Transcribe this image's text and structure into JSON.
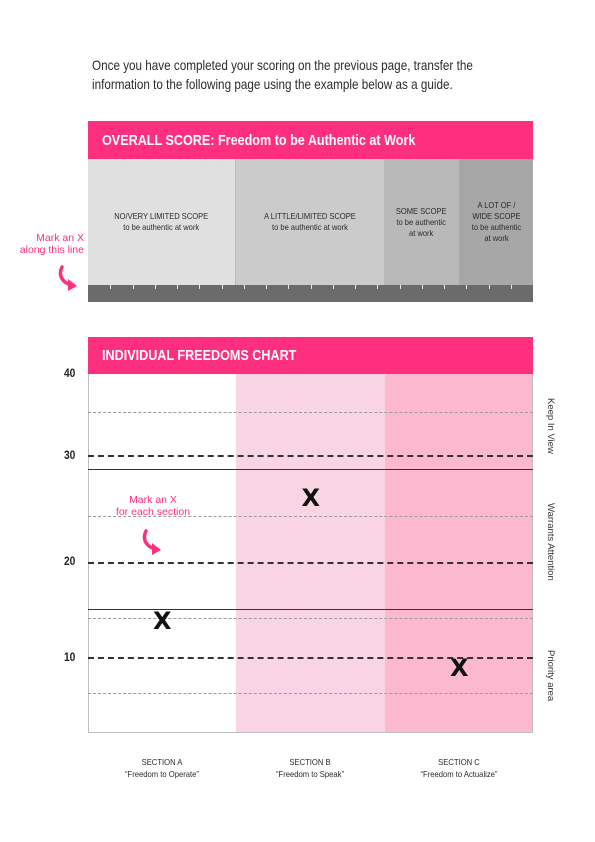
{
  "intro": {
    "line1": "Once you have completed your scoring on the previous page, transfer the",
    "line2": "information to the following page using the example below as a guide."
  },
  "overall": {
    "title": "OVERALL SCORE: Freedom to be Authentic at Work",
    "side_note_line1": "Mark an X",
    "side_note_line2": "along this line",
    "bands": [
      {
        "label": "NO/VERY LIMITED SCOPE\nto be  authentic at work",
        "color": "#e0e0e0"
      },
      {
        "label": "A LITTLE/LIMITED SCOPE\nto be authentic at work",
        "color": "#cbcbcb"
      },
      {
        "label": "SOME SCOPE\nto be authentic\nat work",
        "color": "#b9b9b9"
      },
      {
        "label": "A LOT OF /\nWIDE SCOPE\nto be authentic\nat work",
        "color": "#a7a7a7"
      }
    ]
  },
  "individual": {
    "title": "INDIVIDUAL FREEDOMS CHART",
    "side_note_line1": "Mark an X",
    "side_note_line2": "for each section",
    "y_ticks": [
      "40",
      "30",
      "20",
      "10"
    ],
    "zones": [
      "Keep In View",
      "Warrants Attention",
      "Priority area"
    ],
    "sections": [
      {
        "name": "SECTION A",
        "subtitle": "“Freedom to Operate”",
        "color": "#ffffff",
        "mark": "X",
        "score": 12.3
      },
      {
        "name": "SECTION B",
        "subtitle": "“Freedom to Speak”",
        "color": "#f9d5e3",
        "mark": "X",
        "score": 26.0
      },
      {
        "name": "SECTION C",
        "subtitle": "“Freedom to Actualize”",
        "color": "#fbb8cf",
        "mark": "X",
        "score": 7.0
      }
    ]
  },
  "colors": {
    "accent": "#ff2f80",
    "ruler": "#6b6b6b"
  }
}
